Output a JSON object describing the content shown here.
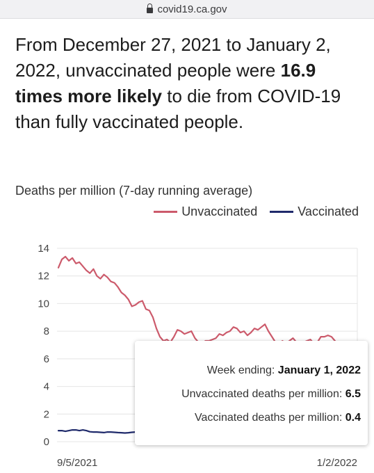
{
  "browser": {
    "url": "covid19.ca.gov"
  },
  "headline": {
    "part1": "From December 27, 2021 to January 2, 2022, unvaccinated people were ",
    "bold": "16.9 times more likely",
    "part2": " to die from COVID-19 than fully vaccinated people."
  },
  "colors": {
    "unvaccinated": "#cc5a6b",
    "vaccinated": "#1f2a6b",
    "grid": "#e4e4e4"
  },
  "chart_data": {
    "type": "line",
    "title": "Deaths per million (7-day running average)",
    "ylim": [
      0,
      14
    ],
    "yticks": [
      0,
      2,
      4,
      6,
      8,
      10,
      12,
      14
    ],
    "xtick_labels": [
      "9/5/2021",
      "1/2/2022"
    ],
    "legend": "top-right",
    "series": [
      {
        "name": "Unvaccinated",
        "color": "#cc5a6b",
        "values": [
          12.6,
          13.2,
          13.4,
          13.1,
          13.3,
          12.9,
          13.0,
          12.7,
          12.4,
          12.2,
          12.5,
          12.0,
          11.8,
          12.1,
          11.9,
          11.6,
          11.5,
          11.2,
          10.8,
          10.6,
          10.3,
          9.8,
          9.9,
          10.1,
          10.2,
          9.6,
          9.5,
          9.0,
          8.2,
          7.6,
          7.3,
          7.4,
          7.2,
          7.6,
          8.1,
          8.0,
          7.8,
          7.9,
          8.0,
          7.5,
          7.2,
          7.1,
          7.3,
          7.3,
          7.4,
          7.5,
          7.8,
          7.7,
          7.9,
          8.0,
          8.3,
          8.2,
          7.9,
          8.0,
          7.7,
          7.9,
          8.2,
          8.1,
          8.3,
          8.5,
          8.0,
          7.6,
          7.2,
          7.1,
          7.3,
          7.1,
          7.3,
          7.5,
          7.2,
          7.1,
          7.2,
          7.3,
          7.4,
          7.1,
          7.2,
          7.6,
          7.6,
          7.7,
          7.6,
          7.3,
          7.0,
          6.8,
          6.7,
          6.8,
          6.6,
          6.5
        ]
      },
      {
        "name": "Vaccinated",
        "color": "#1f2a6b",
        "values": [
          0.8,
          0.8,
          0.75,
          0.8,
          0.85,
          0.85,
          0.8,
          0.85,
          0.8,
          0.72,
          0.7,
          0.7,
          0.68,
          0.66,
          0.7,
          0.7,
          0.68,
          0.66,
          0.65,
          0.63,
          0.65,
          0.68,
          0.7,
          0.7,
          0.68,
          0.65,
          0.62,
          0.6,
          0.55,
          0.52,
          0.5,
          0.5,
          0.48,
          0.5,
          0.52,
          0.5,
          0.48,
          0.46,
          0.45,
          0.45,
          0.44,
          0.44,
          0.45,
          0.45,
          0.44,
          0.43,
          0.44,
          0.45,
          0.45,
          0.44,
          0.43,
          0.43,
          0.44,
          0.44,
          0.43,
          0.42,
          0.42,
          0.43,
          0.44,
          0.43,
          0.42,
          0.42,
          0.41,
          0.41,
          0.42,
          0.42,
          0.41,
          0.41,
          0.41,
          0.42,
          0.41,
          0.41,
          0.4,
          0.4,
          0.41,
          0.41,
          0.4,
          0.4,
          0.41,
          0.4,
          0.4,
          0.4,
          0.4,
          0.4,
          0.4,
          0.4
        ]
      }
    ]
  },
  "tooltip": {
    "week_label": "Week ending: ",
    "week_value": "January 1, 2022",
    "unvax_label": "Unvaccinated deaths per million: ",
    "unvax_value": "6.5",
    "vax_label": "Vaccinated deaths per million: ",
    "vax_value": "0.4"
  }
}
